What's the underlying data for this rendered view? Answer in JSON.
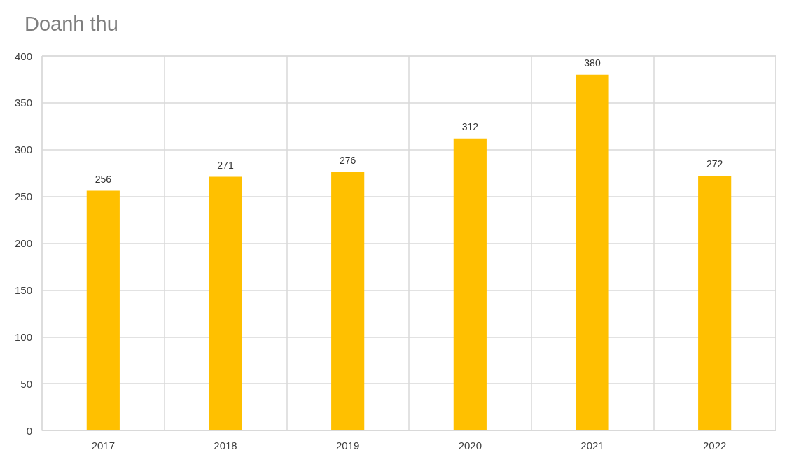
{
  "chart_data": {
    "type": "bar",
    "title": "Doanh thu",
    "categories": [
      "2017",
      "2018",
      "2019",
      "2020",
      "2021",
      "2022"
    ],
    "values": [
      256,
      271,
      276,
      312,
      380,
      272
    ],
    "color": "#ffc000",
    "ylim": [
      0,
      400
    ],
    "yticks": [
      0,
      50,
      100,
      150,
      200,
      250,
      300,
      350,
      400
    ],
    "grid": true,
    "data_labels": true
  }
}
